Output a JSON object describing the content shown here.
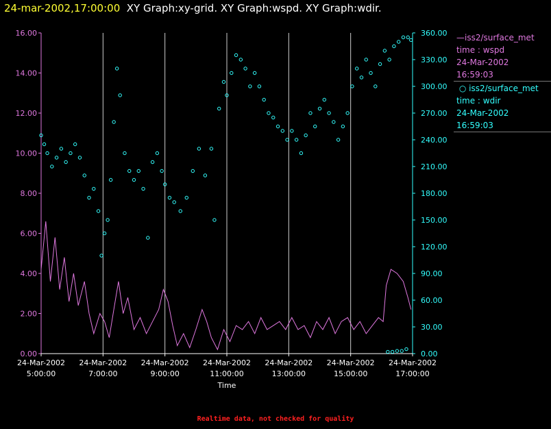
{
  "header": {
    "timestamp": "24-mar-2002,17:00:00",
    "titles": "XY Graph:xy-grid.  XY Graph:wspd.  XY Graph:wdir."
  },
  "legend": [
    {
      "name": "iss2/surface_met",
      "var": "time : wspd",
      "date": "24-Mar-2002",
      "time": "16:59:03",
      "color": "#e078e0",
      "marker": "line"
    },
    {
      "name": "iss2/surface_met",
      "var": "time : wdir",
      "date": "24-Mar-2002",
      "time": "16:59:03",
      "color": "#33ffff",
      "marker": "circle"
    }
  ],
  "footer": "Realtime data, not checked for quality",
  "chart_data": {
    "type": "line+scatter",
    "xlabel": "Time",
    "x_tick_dates": [
      "24-Mar-2002",
      "24-Mar-2002",
      "24-Mar-2002",
      "24-Mar-2002",
      "24-Mar-2002",
      "24-Mar-2002",
      "24-Mar-2002"
    ],
    "x_tick_times": [
      "5:00:00",
      "7:00:00",
      "9:00:00",
      "11:00:00",
      "13:00:00",
      "15:00:00",
      "17:00:00"
    ],
    "x_range_hours": [
      5.0,
      17.0
    ],
    "vertical_grid_hours": [
      7,
      9,
      11,
      13,
      15
    ],
    "left_axis": {
      "ticks": [
        "0.00",
        "2.00",
        "4.00",
        "6.00",
        "8.00",
        "10.00",
        "12.00",
        "14.00",
        "16.00"
      ],
      "range": [
        0,
        16
      ],
      "color": "#e078e0"
    },
    "right_axis": {
      "ticks": [
        "0.00",
        "30.00",
        "60.00",
        "90.00",
        "120.00",
        "150.00",
        "180.00",
        "210.00",
        "240.00",
        "270.00",
        "300.00",
        "330.00",
        "360.00"
      ],
      "range": [
        0,
        360
      ],
      "color": "#33ffff"
    },
    "series": [
      {
        "name": "wspd",
        "axis": "left",
        "style": "line",
        "points": [
          [
            5.0,
            4.2
          ],
          [
            5.15,
            6.6
          ],
          [
            5.3,
            3.6
          ],
          [
            5.45,
            5.8
          ],
          [
            5.6,
            3.2
          ],
          [
            5.75,
            4.8
          ],
          [
            5.9,
            2.6
          ],
          [
            6.05,
            4.0
          ],
          [
            6.2,
            2.4
          ],
          [
            6.4,
            3.6
          ],
          [
            6.55,
            2.0
          ],
          [
            6.7,
            1.0
          ],
          [
            6.9,
            2.0
          ],
          [
            7.05,
            1.6
          ],
          [
            7.2,
            0.8
          ],
          [
            7.35,
            2.2
          ],
          [
            7.5,
            3.6
          ],
          [
            7.65,
            2.0
          ],
          [
            7.8,
            2.8
          ],
          [
            8.0,
            1.2
          ],
          [
            8.2,
            1.8
          ],
          [
            8.4,
            1.0
          ],
          [
            8.6,
            1.6
          ],
          [
            8.8,
            2.2
          ],
          [
            8.95,
            3.2
          ],
          [
            9.1,
            2.6
          ],
          [
            9.25,
            1.4
          ],
          [
            9.4,
            0.4
          ],
          [
            9.6,
            1.0
          ],
          [
            9.8,
            0.3
          ],
          [
            10.0,
            1.2
          ],
          [
            10.2,
            2.2
          ],
          [
            10.35,
            1.6
          ],
          [
            10.5,
            0.8
          ],
          [
            10.7,
            0.2
          ],
          [
            10.9,
            1.2
          ],
          [
            11.1,
            0.6
          ],
          [
            11.3,
            1.4
          ],
          [
            11.5,
            1.2
          ],
          [
            11.7,
            1.6
          ],
          [
            11.9,
            1.0
          ],
          [
            12.1,
            1.8
          ],
          [
            12.3,
            1.2
          ],
          [
            12.5,
            1.4
          ],
          [
            12.7,
            1.6
          ],
          [
            12.9,
            1.2
          ],
          [
            13.1,
            1.8
          ],
          [
            13.3,
            1.2
          ],
          [
            13.5,
            1.4
          ],
          [
            13.7,
            0.8
          ],
          [
            13.9,
            1.6
          ],
          [
            14.1,
            1.2
          ],
          [
            14.3,
            1.8
          ],
          [
            14.5,
            1.0
          ],
          [
            14.7,
            1.6
          ],
          [
            14.9,
            1.8
          ],
          [
            15.1,
            1.2
          ],
          [
            15.3,
            1.6
          ],
          [
            15.5,
            1.0
          ],
          [
            15.7,
            1.4
          ],
          [
            15.9,
            1.8
          ],
          [
            16.05,
            1.6
          ],
          [
            16.15,
            3.4
          ],
          [
            16.3,
            4.2
          ],
          [
            16.5,
            4.0
          ],
          [
            16.7,
            3.6
          ],
          [
            16.85,
            2.8
          ],
          [
            16.95,
            2.2
          ]
        ]
      },
      {
        "name": "wdir",
        "axis": "right",
        "style": "markers",
        "points": [
          [
            5.0,
            245
          ],
          [
            5.1,
            235
          ],
          [
            5.2,
            225
          ],
          [
            5.35,
            210
          ],
          [
            5.5,
            220
          ],
          [
            5.65,
            230
          ],
          [
            5.8,
            215
          ],
          [
            5.95,
            225
          ],
          [
            6.1,
            235
          ],
          [
            6.25,
            220
          ],
          [
            6.4,
            200
          ],
          [
            6.55,
            175
          ],
          [
            6.7,
            185
          ],
          [
            6.85,
            160
          ],
          [
            6.95,
            110
          ],
          [
            7.05,
            135
          ],
          [
            7.15,
            150
          ],
          [
            7.25,
            195
          ],
          [
            7.35,
            260
          ],
          [
            7.45,
            320
          ],
          [
            7.55,
            290
          ],
          [
            7.7,
            225
          ],
          [
            7.85,
            205
          ],
          [
            8.0,
            195
          ],
          [
            8.15,
            205
          ],
          [
            8.3,
            185
          ],
          [
            8.45,
            130
          ],
          [
            8.6,
            215
          ],
          [
            8.75,
            225
          ],
          [
            8.9,
            205
          ],
          [
            9.0,
            190
          ],
          [
            9.15,
            175
          ],
          [
            9.3,
            170
          ],
          [
            9.5,
            160
          ],
          [
            9.7,
            175
          ],
          [
            9.9,
            205
          ],
          [
            10.1,
            230
          ],
          [
            10.3,
            200
          ],
          [
            10.5,
            230
          ],
          [
            10.6,
            150
          ],
          [
            10.75,
            275
          ],
          [
            10.9,
            305
          ],
          [
            11.0,
            290
          ],
          [
            11.15,
            315
          ],
          [
            11.3,
            335
          ],
          [
            11.45,
            330
          ],
          [
            11.6,
            320
          ],
          [
            11.75,
            300
          ],
          [
            11.9,
            315
          ],
          [
            12.05,
            300
          ],
          [
            12.2,
            285
          ],
          [
            12.35,
            270
          ],
          [
            12.5,
            265
          ],
          [
            12.65,
            255
          ],
          [
            12.8,
            250
          ],
          [
            12.95,
            240
          ],
          [
            13.1,
            250
          ],
          [
            13.25,
            240
          ],
          [
            13.4,
            225
          ],
          [
            13.55,
            245
          ],
          [
            13.7,
            270
          ],
          [
            13.85,
            255
          ],
          [
            14.0,
            275
          ],
          [
            14.15,
            285
          ],
          [
            14.3,
            270
          ],
          [
            14.45,
            260
          ],
          [
            14.6,
            240
          ],
          [
            14.75,
            255
          ],
          [
            14.9,
            270
          ],
          [
            15.05,
            300
          ],
          [
            15.2,
            320
          ],
          [
            15.35,
            310
          ],
          [
            15.5,
            330
          ],
          [
            15.65,
            315
          ],
          [
            15.8,
            300
          ],
          [
            15.95,
            325
          ],
          [
            16.1,
            340
          ],
          [
            16.25,
            330
          ],
          [
            16.4,
            345
          ],
          [
            16.55,
            350
          ],
          [
            16.7,
            355
          ],
          [
            16.85,
            355
          ],
          [
            16.95,
            352
          ],
          [
            16.2,
            2
          ],
          [
            16.35,
            2
          ],
          [
            16.5,
            3
          ],
          [
            16.65,
            3
          ],
          [
            16.8,
            5
          ]
        ]
      }
    ],
    "grid": "vertical only"
  }
}
